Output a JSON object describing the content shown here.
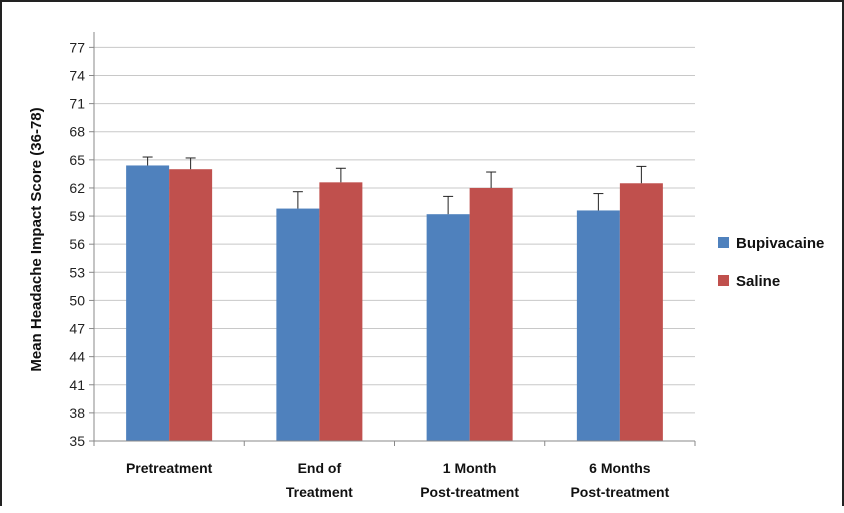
{
  "chart_data": {
    "type": "bar",
    "title": "",
    "xlabel": "",
    "ylabel": "Mean Headache Impact Score (36-78)",
    "ylim": [
      35,
      78
    ],
    "yticks": [
      35,
      38,
      41,
      44,
      47,
      50,
      53,
      56,
      59,
      62,
      65,
      68,
      71,
      74,
      77
    ],
    "grid": true,
    "legend_position": "right",
    "categories": [
      [
        "Pretreatment"
      ],
      [
        "End of",
        "Treatment"
      ],
      [
        "1 Month",
        "Post-treatment"
      ],
      [
        "6 Months",
        "Post-treatment"
      ]
    ],
    "series": [
      {
        "name": "Bupivacaine",
        "color": "#4F81BD",
        "values": [
          64.4,
          59.8,
          59.2,
          59.6
        ],
        "error": [
          0.9,
          1.8,
          1.9,
          1.8
        ]
      },
      {
        "name": "Saline",
        "color": "#C0504D",
        "values": [
          64.0,
          62.6,
          62.0,
          62.5
        ],
        "error": [
          1.2,
          1.5,
          1.7,
          1.8
        ]
      }
    ]
  }
}
